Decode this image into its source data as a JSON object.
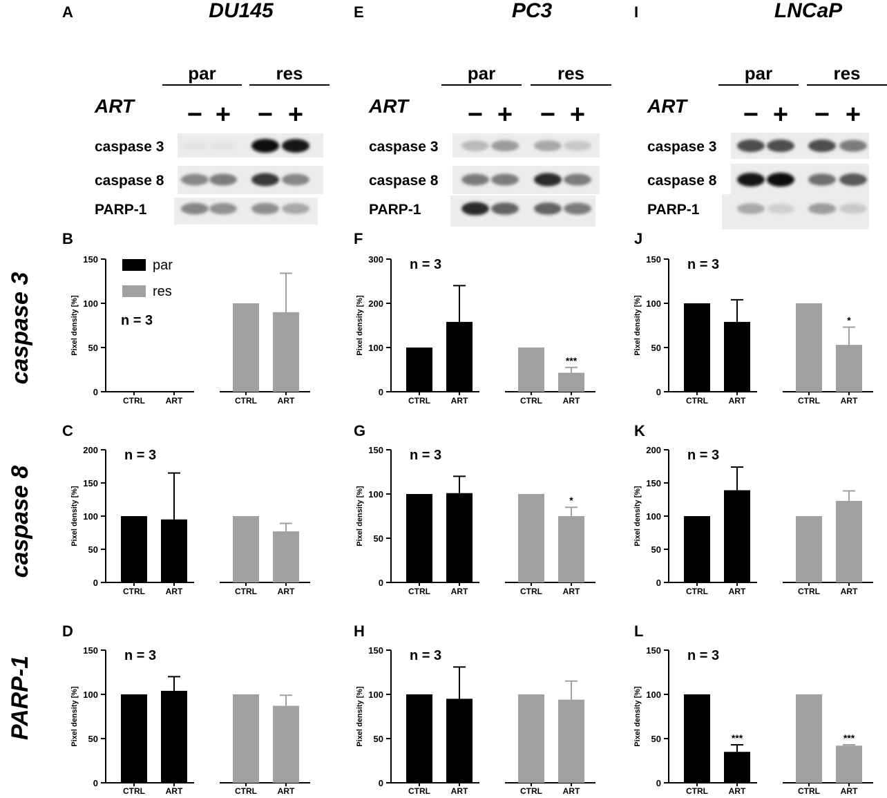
{
  "columns": [
    {
      "letter": "A",
      "cell_line": "DU145"
    },
    {
      "letter": "E",
      "cell_line": "PC3"
    },
    {
      "letter": "I",
      "cell_line": "LNCaP"
    }
  ],
  "rows": [
    "caspase 3",
    "caspase 8",
    "PARP-1"
  ],
  "blot": {
    "group_labels": [
      "par",
      "res"
    ],
    "treatment_label": "ART",
    "treatment_signs": [
      "−",
      "+",
      "−",
      "+"
    ],
    "bands": [
      "caspase 3",
      "caspase 8",
      "PARP-1"
    ]
  },
  "colors": {
    "par": "#000000",
    "res": "#a0a0a0"
  },
  "chart_data": [
    {
      "panel": "B",
      "type": "bar",
      "categories": [
        "CTRL",
        "ART",
        "CTRL",
        "ART"
      ],
      "groups": [
        "par",
        "par",
        "res",
        "res"
      ],
      "values": [
        0,
        0,
        100,
        90
      ],
      "errors": [
        0,
        0,
        0,
        44
      ],
      "significance": [
        "",
        "",
        "",
        ""
      ],
      "ylabel": "Pixel density [%]",
      "ylim": [
        0,
        150
      ],
      "yticks": [
        0,
        50,
        100,
        150
      ],
      "annotation": "n = 3",
      "legend": [
        {
          "name": "par",
          "color": "#000000"
        },
        {
          "name": "res",
          "color": "#a0a0a0"
        }
      ],
      "legend_position": "top-left"
    },
    {
      "panel": "F",
      "type": "bar",
      "categories": [
        "CTRL",
        "ART",
        "CTRL",
        "ART"
      ],
      "groups": [
        "par",
        "par",
        "res",
        "res"
      ],
      "values": [
        100,
        158,
        100,
        43
      ],
      "errors": [
        0,
        82,
        0,
        12
      ],
      "significance": [
        "",
        "",
        "",
        "***"
      ],
      "ylabel": "Pixel density [%]",
      "ylim": [
        0,
        300
      ],
      "yticks": [
        0,
        100,
        200,
        300
      ],
      "annotation": "n = 3"
    },
    {
      "panel": "J",
      "type": "bar",
      "categories": [
        "CTRL",
        "ART",
        "CTRL",
        "ART"
      ],
      "groups": [
        "par",
        "par",
        "res",
        "res"
      ],
      "values": [
        100,
        79,
        100,
        53
      ],
      "errors": [
        0,
        25,
        0,
        20
      ],
      "significance": [
        "",
        "",
        "",
        "*"
      ],
      "ylabel": "Pixel density [%]",
      "ylim": [
        0,
        150
      ],
      "yticks": [
        0,
        50,
        100,
        150
      ],
      "annotation": "n = 3"
    },
    {
      "panel": "C",
      "type": "bar",
      "categories": [
        "CTRL",
        "ART",
        "CTRL",
        "ART"
      ],
      "groups": [
        "par",
        "par",
        "res",
        "res"
      ],
      "values": [
        100,
        95,
        100,
        77
      ],
      "errors": [
        0,
        70,
        0,
        12
      ],
      "significance": [
        "",
        "",
        "",
        ""
      ],
      "ylabel": "Pixel density [%]",
      "ylim": [
        0,
        200
      ],
      "yticks": [
        0,
        50,
        100,
        150,
        200
      ],
      "annotation": "n = 3"
    },
    {
      "panel": "G",
      "type": "bar",
      "categories": [
        "CTRL",
        "ART",
        "CTRL",
        "ART"
      ],
      "groups": [
        "par",
        "par",
        "res",
        "res"
      ],
      "values": [
        100,
        101,
        100,
        75
      ],
      "errors": [
        0,
        19,
        0,
        10
      ],
      "significance": [
        "",
        "",
        "",
        "*"
      ],
      "ylabel": "Pixel density [%]",
      "ylim": [
        0,
        150
      ],
      "yticks": [
        0,
        50,
        100,
        150
      ],
      "annotation": "n = 3"
    },
    {
      "panel": "K",
      "type": "bar",
      "categories": [
        "CTRL",
        "ART",
        "CTRL",
        "ART"
      ],
      "groups": [
        "par",
        "par",
        "res",
        "res"
      ],
      "values": [
        100,
        139,
        100,
        123
      ],
      "errors": [
        0,
        35,
        0,
        15
      ],
      "significance": [
        "",
        "",
        "",
        ""
      ],
      "ylabel": "Pixel density [%]",
      "ylim": [
        0,
        200
      ],
      "yticks": [
        0,
        50,
        100,
        150,
        200
      ],
      "annotation": "n = 3"
    },
    {
      "panel": "D",
      "type": "bar",
      "categories": [
        "CTRL",
        "ART",
        "CTRL",
        "ART"
      ],
      "groups": [
        "par",
        "par",
        "res",
        "res"
      ],
      "values": [
        100,
        104,
        100,
        87
      ],
      "errors": [
        0,
        16,
        0,
        12
      ],
      "significance": [
        "",
        "",
        "",
        ""
      ],
      "ylabel": "Pixel density [%]",
      "ylim": [
        0,
        150
      ],
      "yticks": [
        0,
        50,
        100,
        150
      ],
      "annotation": "n = 3"
    },
    {
      "panel": "H",
      "type": "bar",
      "categories": [
        "CTRL",
        "ART",
        "CTRL",
        "ART"
      ],
      "groups": [
        "par",
        "par",
        "res",
        "res"
      ],
      "values": [
        100,
        95,
        100,
        94
      ],
      "errors": [
        0,
        36,
        0,
        21
      ],
      "significance": [
        "",
        "",
        "",
        ""
      ],
      "ylabel": "Pixel density [%]",
      "ylim": [
        0,
        150
      ],
      "yticks": [
        0,
        50,
        100,
        150
      ],
      "annotation": "n = 3"
    },
    {
      "panel": "L",
      "type": "bar",
      "categories": [
        "CTRL",
        "ART",
        "CTRL",
        "ART"
      ],
      "groups": [
        "par",
        "par",
        "res",
        "res"
      ],
      "values": [
        100,
        35,
        100,
        42
      ],
      "errors": [
        0,
        8,
        0,
        1
      ],
      "significance": [
        "",
        "***",
        "",
        "***"
      ],
      "ylabel": "Pixel density [%]",
      "ylim": [
        0,
        150
      ],
      "yticks": [
        0,
        50,
        100,
        150
      ],
      "annotation": "n = 3"
    }
  ]
}
